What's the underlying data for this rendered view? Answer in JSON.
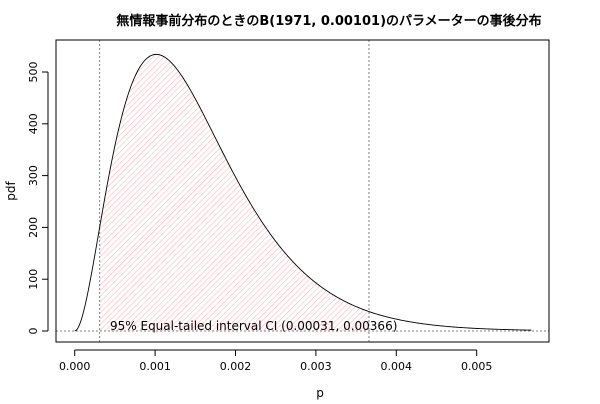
{
  "chart_data": {
    "type": "line",
    "title": "無情報事前分布のときのB(1971, 0.00101)のパラメーターの事後分布",
    "xlabel": "p",
    "ylabel": "pdf",
    "xlim": [
      -0.00035,
      0.0059
    ],
    "ylim": [
      -20,
      555
    ],
    "x_ticks": [
      "0.000",
      "0.001",
      "0.002",
      "0.003",
      "0.004",
      "0.005"
    ],
    "x_tick_values": [
      0,
      0.001,
      0.002,
      0.003,
      0.004,
      0.005
    ],
    "y_ticks": [
      "0",
      "100",
      "200",
      "300",
      "400",
      "500"
    ],
    "y_tick_values": [
      0,
      100,
      200,
      300,
      400,
      500
    ],
    "curve": {
      "distribution": "beta",
      "shape1": 3,
      "shape2": 1970,
      "x_from": 0,
      "x_to": 0.00568
    },
    "ci": {
      "lower": 0.00031,
      "upper": 0.00366,
      "label": "95% Equal-tailed interval CI (0.00031, 0.00366)"
    },
    "grid": false,
    "colors": {
      "curve": "#000000",
      "hatch": "#ffb6c1",
      "guides": "#808080"
    }
  }
}
